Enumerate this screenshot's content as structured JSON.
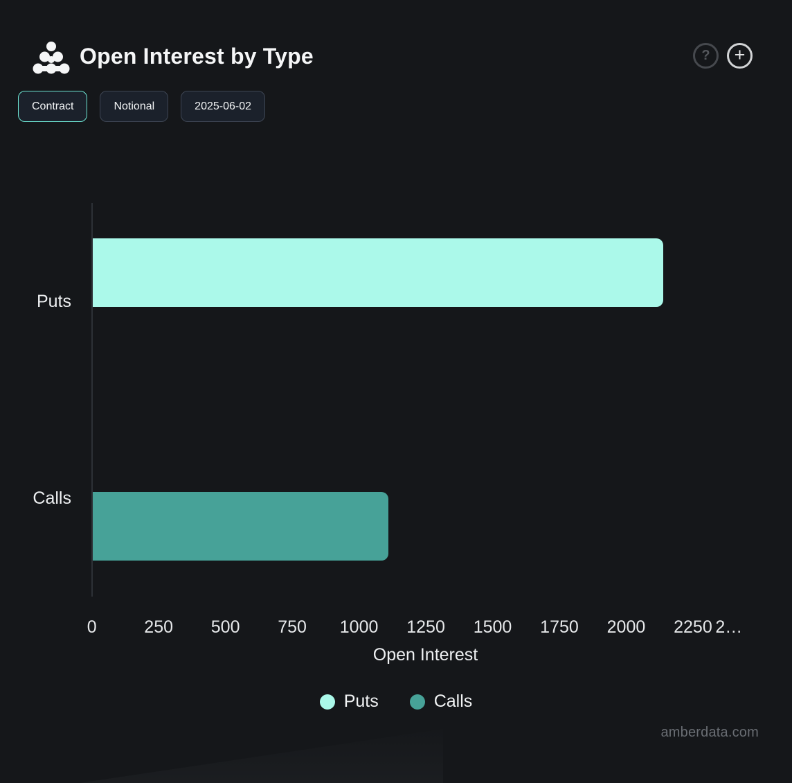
{
  "header": {
    "title": "Open Interest by Type"
  },
  "toolbar": {
    "buttons": [
      {
        "label": "Contract",
        "active": true
      },
      {
        "label": "Notional",
        "active": false
      },
      {
        "label": "2025-06-02",
        "active": false
      }
    ]
  },
  "header_icons": {
    "help_glyph": "?",
    "add_glyph": "+"
  },
  "chart_data": {
    "type": "bar",
    "orientation": "horizontal",
    "title": "Open Interest by Type",
    "categories": [
      "Puts",
      "Calls"
    ],
    "series": [
      {
        "name": "Puts",
        "color": "#abf9ea",
        "values": [
          2136,
          0
        ]
      },
      {
        "name": "Calls",
        "color": "#47a298",
        "values": [
          0,
          1107
        ]
      }
    ],
    "xlabel": "Open Interest",
    "xlim": [
      0,
      2500
    ],
    "x_tick_step": 250,
    "x_tick_labels": [
      "0",
      "250",
      "500",
      "750",
      "1000",
      "1250",
      "1500",
      "1750",
      "2000",
      "2250",
      "2…"
    ],
    "grid": false,
    "legend_position": "bottom",
    "legend_entries": [
      "Puts",
      "Calls"
    ]
  },
  "footer": {
    "watermark": "amberdata.com"
  },
  "colors": {
    "background": "#15171a",
    "accent_teal": "#6ee7d4",
    "puts_bar": "#abf9ea",
    "calls_bar": "#47a298",
    "axis_line": "#2d3136",
    "text": "#f2f4f5",
    "muted_text": "#696d73"
  }
}
